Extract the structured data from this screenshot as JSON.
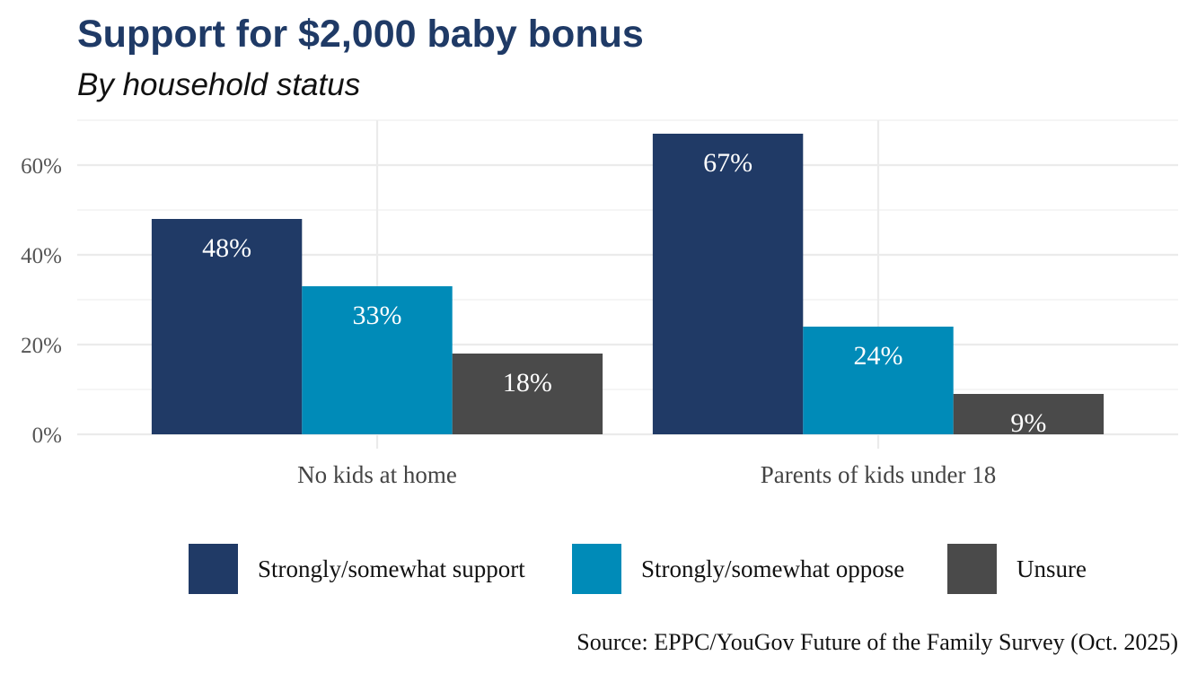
{
  "chart_data": {
    "type": "bar",
    "title": "Support for $2,000 baby bonus",
    "subtitle": "By household status",
    "categories": [
      "No kids at home",
      "Parents of kids under 18"
    ],
    "series": [
      {
        "name": "Strongly/somewhat support",
        "values": [
          48,
          67
        ],
        "labels": [
          "48%",
          "67%"
        ],
        "color": "#203a66"
      },
      {
        "name": "Strongly/somewhat oppose",
        "values": [
          33,
          24
        ],
        "labels": [
          "33%",
          "24%"
        ],
        "color": "#008bb8"
      },
      {
        "name": "Unsure",
        "values": [
          18,
          9
        ],
        "labels": [
          "18%",
          "9%"
        ],
        "color": "#4a4a4a"
      }
    ],
    "y_ticks": [
      0,
      20,
      40,
      60
    ],
    "y_tick_labels": [
      "0%",
      "20%",
      "40%",
      "60%"
    ],
    "ylim": [
      0,
      70
    ],
    "xlabel": "",
    "ylabel": "",
    "legend_position": "bottom",
    "source": "Source: EPPC/YouGov Future of the Family Survey (Oct. 2025)"
  }
}
